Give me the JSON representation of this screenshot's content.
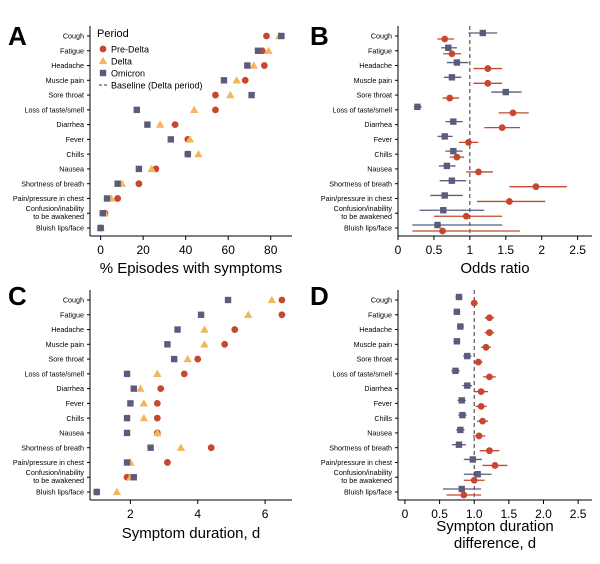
{
  "colors": {
    "pre_delta": "#c8472f",
    "delta": "#f2b75c",
    "omicron": "#5b5b7d",
    "axis": "#000000",
    "baseline": "#333333"
  },
  "legend": {
    "title": "Period",
    "items": [
      "Pre-Delta",
      "Delta",
      "Omicron"
    ],
    "baseline_label": "Baseline (Delta period)"
  },
  "symptoms": [
    "Cough",
    "Fatigue",
    "Headache",
    "Muscle pain",
    "Sore throat",
    "Loss of taste/smell",
    "Diarrhea",
    "Fever",
    "Chills",
    "Nausea",
    "Shortness of breath",
    "Pain/pressure in chest",
    "Confusion/inability\nto be awakened",
    "Bluish lips/face"
  ],
  "chart_data": [
    {
      "panel": "A",
      "type": "scatter",
      "xlabel": "% Episodes with symptoms",
      "xlim": [
        -5,
        90
      ],
      "xticks": [
        0,
        20,
        40,
        60,
        80
      ],
      "series": [
        {
          "name": "Pre-Delta",
          "values": [
            78,
            76,
            77,
            68,
            54,
            54,
            35,
            41,
            41,
            26,
            18,
            8,
            2,
            0
          ]
        },
        {
          "name": "Delta",
          "values": [
            84,
            79,
            72,
            64,
            61,
            44,
            28,
            42,
            46,
            24,
            10,
            5,
            2,
            0
          ]
        },
        {
          "name": "Omicron",
          "values": [
            85,
            74,
            69,
            58,
            71,
            17,
            22,
            33,
            41,
            18,
            8,
            3,
            1,
            0
          ]
        }
      ]
    },
    {
      "panel": "B",
      "type": "scatter",
      "xlabel": "Odds ratio",
      "xlim": [
        0,
        2.7
      ],
      "xticks": [
        0,
        0.5,
        1,
        1.5,
        2,
        2.5
      ],
      "baseline": 1,
      "series": [
        {
          "name": "Pre-Delta",
          "values": [
            0.65,
            0.75,
            1.25,
            1.25,
            0.72,
            1.6,
            1.45,
            0.98,
            0.82,
            1.12,
            1.92,
            1.55,
            0.95,
            0.62
          ],
          "ci_low": [
            0.55,
            0.63,
            1.05,
            1.05,
            0.62,
            1.4,
            1.2,
            0.85,
            0.72,
            0.95,
            1.55,
            1.1,
            0.5,
            0.2
          ],
          "ci_high": [
            0.78,
            0.88,
            1.45,
            1.45,
            0.85,
            1.82,
            1.7,
            1.12,
            0.92,
            1.32,
            2.35,
            2.05,
            1.45,
            1.7
          ]
        },
        {
          "name": "Omicron",
          "values": [
            1.18,
            0.7,
            0.82,
            0.75,
            1.5,
            0.27,
            0.77,
            0.65,
            0.77,
            0.68,
            0.75,
            0.65,
            0.63,
            0.55
          ],
          "ci_low": [
            0.98,
            0.6,
            0.68,
            0.64,
            1.3,
            0.22,
            0.66,
            0.55,
            0.66,
            0.57,
            0.58,
            0.45,
            0.3,
            0.2
          ],
          "ci_high": [
            1.38,
            0.82,
            0.98,
            0.88,
            1.72,
            0.33,
            0.9,
            0.76,
            0.9,
            0.8,
            0.95,
            0.9,
            1.2,
            1.45
          ]
        }
      ]
    },
    {
      "panel": "C",
      "type": "scatter",
      "xlabel": "Symptom duration, d",
      "xlim": [
        0.8,
        6.8
      ],
      "xticks": [
        2,
        4,
        6
      ],
      "series": [
        {
          "name": "Pre-Delta",
          "values": [
            6.5,
            6.5,
            5.1,
            4.8,
            4.0,
            3.6,
            2.9,
            2.8,
            2.8,
            2.8,
            4.4,
            3.1,
            1.9,
            1.0
          ]
        },
        {
          "name": "Delta",
          "values": [
            6.2,
            5.5,
            4.2,
            4.2,
            3.7,
            2.8,
            2.3,
            2.4,
            2.4,
            2.8,
            3.5,
            2.0,
            2.0,
            1.6
          ]
        },
        {
          "name": "Omicron",
          "values": [
            4.9,
            4.1,
            3.4,
            3.1,
            3.3,
            1.9,
            2.1,
            2.0,
            1.9,
            1.9,
            2.6,
            1.9,
            2.1,
            1.0
          ]
        }
      ]
    },
    {
      "panel": "D",
      "type": "scatter",
      "xlabel": "Sympton duration\ndifference, d",
      "xlim": [
        -0.1,
        2.7
      ],
      "xticks": [
        0,
        0.5,
        1,
        1.5,
        2,
        2.5
      ],
      "xtick_labels": [
        "0",
        "0.5",
        "1.0",
        "1.5",
        "2.0",
        "2.5"
      ],
      "baseline": 1,
      "series": [
        {
          "name": "Pre-Delta",
          "values": [
            1.0,
            1.22,
            1.22,
            1.17,
            1.06,
            1.22,
            1.1,
            1.1,
            1.12,
            1.07,
            1.22,
            1.3,
            1.0,
            0.85
          ],
          "ci_low": [
            0.95,
            1.15,
            1.15,
            1.1,
            1.0,
            1.13,
            1.0,
            1.02,
            1.04,
            0.98,
            1.08,
            1.12,
            0.85,
            0.6
          ],
          "ci_high": [
            1.05,
            1.29,
            1.29,
            1.24,
            1.12,
            1.31,
            1.2,
            1.18,
            1.2,
            1.16,
            1.36,
            1.48,
            1.15,
            1.1
          ]
        },
        {
          "name": "Omicron",
          "values": [
            0.78,
            0.75,
            0.8,
            0.75,
            0.9,
            0.73,
            0.9,
            0.82,
            0.83,
            0.8,
            0.78,
            0.98,
            1.05,
            0.82
          ],
          "ci_low": [
            0.73,
            0.7,
            0.75,
            0.7,
            0.84,
            0.67,
            0.83,
            0.76,
            0.77,
            0.74,
            0.68,
            0.85,
            0.85,
            0.55
          ],
          "ci_high": [
            0.83,
            0.8,
            0.85,
            0.8,
            0.96,
            0.79,
            0.97,
            0.88,
            0.89,
            0.86,
            0.88,
            1.11,
            1.25,
            1.1
          ]
        }
      ]
    }
  ]
}
